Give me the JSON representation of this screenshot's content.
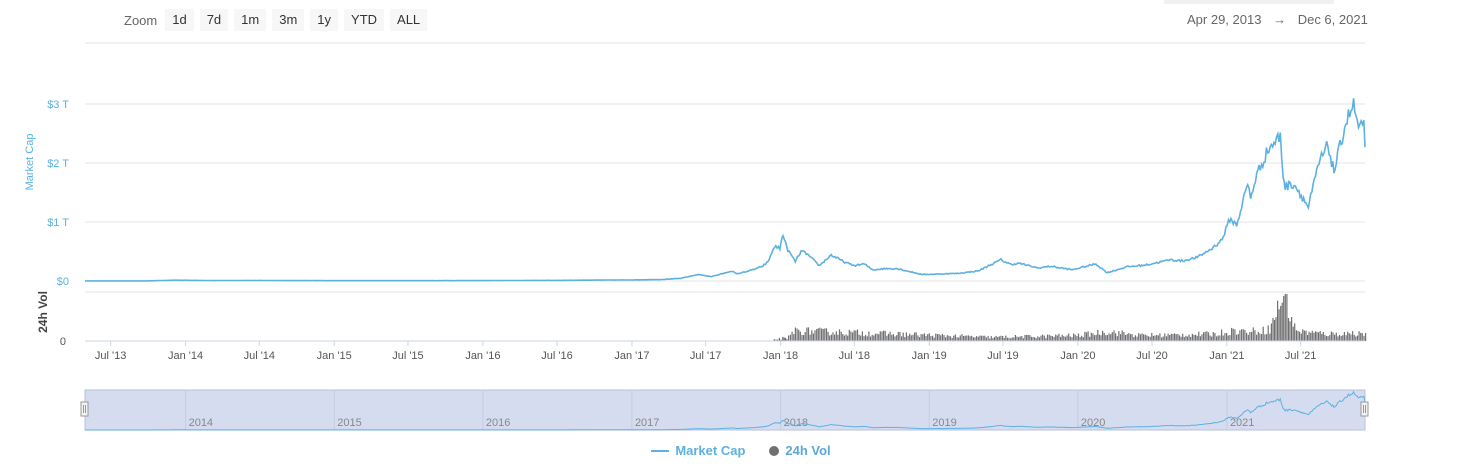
{
  "toolbar": {
    "zoom_label": "Zoom",
    "zoom_buttons": [
      "1d",
      "7d",
      "1m",
      "3m",
      "1y",
      "YTD",
      "ALL"
    ],
    "range_from": "Apr 29, 2013",
    "range_arrow": "→",
    "range_to": "Dec 6, 2021"
  },
  "colors": {
    "market_cap": "#5db1e0",
    "volume": "#707070",
    "navigator_mask": "#d5dcef",
    "navigator_border": "#b8c2dc",
    "grid": "#e6e6e6"
  },
  "chart_data": {
    "type": "line",
    "x_axis": {
      "tick_labels": [
        "Jul '13",
        "Jan '14",
        "Jul '14",
        "Jan '15",
        "Jul '15",
        "Jan '16",
        "Jul '16",
        "Jan '17",
        "Jul '17",
        "Jan '18",
        "Jul '18",
        "Jan '19",
        "Jul '19",
        "Jan '20",
        "Jul '20",
        "Jan '21",
        "Jul '21"
      ],
      "range": [
        "2013-04-29",
        "2021-12-06"
      ]
    },
    "y_axis_market_cap": {
      "label": "Market Cap",
      "tick_labels": [
        "$0",
        "$1 T",
        "$2 T",
        "$3 T"
      ],
      "ticks": [
        0,
        1,
        2,
        3
      ],
      "unit": "T USD",
      "ylim": [
        0,
        3
      ]
    },
    "y_axis_volume": {
      "label": "24h Vol",
      "tick_labels": [
        "0"
      ]
    },
    "grid": true,
    "legend_position": "bottom-center",
    "series": [
      {
        "name": "Market Cap",
        "axis": "market_cap",
        "points": [
          [
            "2013-04-29",
            0.0015
          ],
          [
            "2013-10-01",
            0.002
          ],
          [
            "2013-12-04",
            0.014
          ],
          [
            "2014-03-01",
            0.008
          ],
          [
            "2014-07-01",
            0.009
          ],
          [
            "2015-01-01",
            0.005
          ],
          [
            "2015-07-01",
            0.005
          ],
          [
            "2016-01-01",
            0.007
          ],
          [
            "2016-07-01",
            0.011
          ],
          [
            "2017-01-01",
            0.018
          ],
          [
            "2017-03-15",
            0.025
          ],
          [
            "2017-05-01",
            0.045
          ],
          [
            "2017-06-12",
            0.11
          ],
          [
            "2017-07-15",
            0.075
          ],
          [
            "2017-08-15",
            0.13
          ],
          [
            "2017-09-02",
            0.17
          ],
          [
            "2017-09-15",
            0.12
          ],
          [
            "2017-10-20",
            0.18
          ],
          [
            "2017-11-15",
            0.24
          ],
          [
            "2017-12-01",
            0.32
          ],
          [
            "2017-12-17",
            0.59
          ],
          [
            "2017-12-30",
            0.55
          ],
          [
            "2018-01-07",
            0.8
          ],
          [
            "2018-01-16",
            0.56
          ],
          [
            "2018-02-06",
            0.33
          ],
          [
            "2018-02-20",
            0.5
          ],
          [
            "2018-03-05",
            0.47
          ],
          [
            "2018-04-06",
            0.26
          ],
          [
            "2018-05-05",
            0.44
          ],
          [
            "2018-06-10",
            0.31
          ],
          [
            "2018-07-01",
            0.26
          ],
          [
            "2018-07-25",
            0.29
          ],
          [
            "2018-08-15",
            0.19
          ],
          [
            "2018-09-15",
            0.21
          ],
          [
            "2018-10-15",
            0.21
          ],
          [
            "2018-11-20",
            0.15
          ],
          [
            "2018-12-15",
            0.11
          ],
          [
            "2019-02-01",
            0.12
          ],
          [
            "2019-03-15",
            0.13
          ],
          [
            "2019-05-01",
            0.17
          ],
          [
            "2019-06-26",
            0.36
          ],
          [
            "2019-07-20",
            0.28
          ],
          [
            "2019-08-10",
            0.3
          ],
          [
            "2019-09-25",
            0.22
          ],
          [
            "2019-10-26",
            0.25
          ],
          [
            "2019-12-18",
            0.19
          ],
          [
            "2020-02-14",
            0.29
          ],
          [
            "2020-03-13",
            0.14
          ],
          [
            "2020-04-30",
            0.24
          ],
          [
            "2020-06-15",
            0.27
          ],
          [
            "2020-08-15",
            0.36
          ],
          [
            "2020-09-15",
            0.34
          ],
          [
            "2020-10-20",
            0.4
          ],
          [
            "2020-11-25",
            0.55
          ],
          [
            "2020-12-20",
            0.7
          ],
          [
            "2021-01-08",
            1.05
          ],
          [
            "2021-01-25",
            0.95
          ],
          [
            "2021-02-21",
            1.65
          ],
          [
            "2021-02-28",
            1.4
          ],
          [
            "2021-03-15",
            1.8
          ],
          [
            "2021-04-14",
            2.25
          ],
          [
            "2021-05-12",
            2.45
          ],
          [
            "2021-05-19",
            1.8
          ],
          [
            "2021-05-24",
            1.6
          ],
          [
            "2021-06-15",
            1.65
          ],
          [
            "2021-07-20",
            1.25
          ],
          [
            "2021-08-15",
            2.0
          ],
          [
            "2021-09-06",
            2.3
          ],
          [
            "2021-09-21",
            1.85
          ],
          [
            "2021-10-20",
            2.7
          ],
          [
            "2021-11-08",
            2.98
          ],
          [
            "2021-11-20",
            2.6
          ],
          [
            "2021-12-03",
            2.6
          ],
          [
            "2021-12-06",
            2.27
          ]
        ]
      },
      {
        "name": "24h Vol",
        "axis": "volume",
        "relative_points": [
          [
            "2017-12-15",
            0.03
          ],
          [
            "2018-01-05",
            0.06
          ],
          [
            "2018-01-15",
            0.04
          ],
          [
            "2018-02-01",
            0.22
          ],
          [
            "2019-06-01",
            0.08
          ],
          [
            "2019-10-01",
            0.1
          ],
          [
            "2020-01-01",
            0.12
          ],
          [
            "2020-03-12",
            0.2
          ],
          [
            "2020-06-01",
            0.12
          ],
          [
            "2020-09-01",
            0.13
          ],
          [
            "2020-12-01",
            0.15
          ],
          [
            "2021-01-15",
            0.22
          ],
          [
            "2021-02-25",
            0.2
          ],
          [
            "2021-04-15",
            0.25
          ],
          [
            "2021-05-19",
            1.0
          ],
          [
            "2021-06-15",
            0.28
          ],
          [
            "2021-07-01",
            0.2
          ],
          [
            "2021-09-01",
            0.15
          ],
          [
            "2021-12-06",
            0.17
          ]
        ]
      }
    ],
    "navigator": {
      "year_labels": [
        "2014",
        "2015",
        "2016",
        "2017",
        "2018",
        "2019",
        "2020",
        "2021"
      ],
      "selection": [
        "2013-04-29",
        "2021-12-06"
      ]
    }
  },
  "legend": {
    "items": [
      {
        "name": "Market Cap",
        "color": "#5db1e0",
        "shape": "line"
      },
      {
        "name": "24h Vol",
        "color": "#707070",
        "shape": "dot"
      }
    ]
  }
}
